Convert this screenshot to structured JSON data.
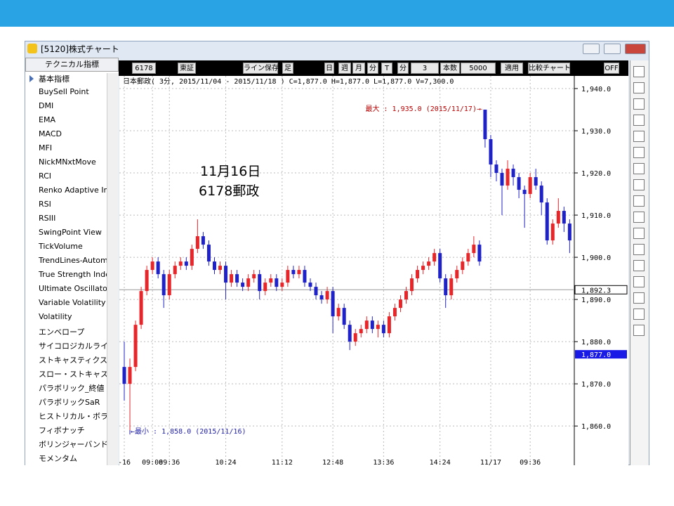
{
  "window": {
    "title": "[5120]株式チャート"
  },
  "sidebar": {
    "header": "テクニカル指標",
    "items": [
      "基本指標",
      "BuySell Point",
      "DMI",
      "EMA",
      "MACD",
      "MFI",
      "NickMNxtMove",
      "RCI",
      "Renko Adaptive Ind",
      "RSI",
      "RSIII",
      "SwingPoint View",
      "TickVolume",
      "TrendLines-Automa",
      "True Strength Inde",
      "Ultimate Oscillator",
      "Variable Volatility",
      "Volatility",
      "エンベロープ",
      "サイコロジカルライン",
      "ストキャスティクス(",
      "スロー・ストキャステ",
      "パラボリック_終値",
      "パラボリックSaR",
      "ヒストリカル・ボラテ",
      "フィボナッチ",
      "ボリンジャーバンド",
      "モメンタム"
    ]
  },
  "toolbar": {
    "items": [
      "6178",
      "東証",
      "ライン保存",
      "足",
      "日",
      "週",
      "月",
      "分",
      "T",
      "分",
      "3",
      "本数",
      "5000",
      "適用",
      "比較チャート",
      "OFF"
    ]
  },
  "chart_data": {
    "type": "candlestick",
    "header": "日本郵政( 3分, 2015/11/04 - 2015/11/18 )  C=1,877.0 H=1,877.0 L=1,877.0 V=7,300.0",
    "annotations": [
      "最大 : 1,935.0 (2015/11/17)→",
      "←最小 : 1,858.0 (2015/11/16)"
    ],
    "overlay_text": [
      "11月16日",
      "6178郵政"
    ],
    "up_color": "#e8262a",
    "down_color": "#1f22c8",
    "ylim": [
      1850.7,
      1943
    ],
    "yticks": [
      {
        "value": 1940,
        "label": "1,940.0"
      },
      {
        "value": 1930,
        "label": "1,930.0"
      },
      {
        "value": 1920,
        "label": "1,920.0"
      },
      {
        "value": 1910,
        "label": "1,910.0"
      },
      {
        "value": 1900,
        "label": "1,900.0"
      },
      {
        "value": 1890,
        "label": "1,890.0"
      },
      {
        "value": 1880,
        "label": "1,880.0"
      },
      {
        "value": 1870,
        "label": "1,870.0"
      },
      {
        "value": 1860,
        "label": "1,860.0"
      }
    ],
    "xticks": [
      {
        "value": 0,
        "label": "-16"
      },
      {
        "value": 5,
        "label": "09:08"
      },
      {
        "value": 8,
        "label": "09:36"
      },
      {
        "value": 18,
        "label": "10:24"
      },
      {
        "value": 28,
        "label": "11:12"
      },
      {
        "value": 37,
        "label": "12:48"
      },
      {
        "value": 46,
        "label": "13:36"
      },
      {
        "value": 56,
        "label": "14:24"
      },
      {
        "value": 65,
        "label": "11/17"
      },
      {
        "value": 72,
        "label": "09:36"
      }
    ],
    "price_lines": [
      {
        "value": 1892.3,
        "label": "1,892.3"
      },
      {
        "value": 1877,
        "label": "1,877.0"
      }
    ],
    "candles": [
      [
        1874,
        1880,
        1866,
        1870
      ],
      [
        1870,
        1876,
        1858,
        1874
      ],
      [
        1874,
        1885,
        1873,
        1884
      ],
      [
        1884,
        1893,
        1883,
        1892
      ],
      [
        1892,
        1898,
        1891,
        1897
      ],
      [
        1897,
        1900,
        1896,
        1899
      ],
      [
        1899,
        1900,
        1895,
        1896
      ],
      [
        1896,
        1897,
        1888,
        1891
      ],
      [
        1891,
        1897,
        1890,
        1896
      ],
      [
        1896,
        1899,
        1895,
        1898
      ],
      [
        1898,
        1900,
        1897,
        1899
      ],
      [
        1899,
        1900,
        1897,
        1898
      ],
      [
        1898,
        1903,
        1897,
        1902
      ],
      [
        1902,
        1909,
        1901,
        1905
      ],
      [
        1905,
        1906,
        1902,
        1903
      ],
      [
        1903,
        1904,
        1898,
        1899
      ],
      [
        1899,
        1900,
        1896,
        1897
      ],
      [
        1897,
        1899,
        1896,
        1898
      ],
      [
        1898,
        1899,
        1890,
        1894
      ],
      [
        1894,
        1897,
        1893,
        1896
      ],
      [
        1896,
        1897,
        1893,
        1894
      ],
      [
        1894,
        1895,
        1892,
        1893
      ],
      [
        1893,
        1896,
        1892,
        1895
      ],
      [
        1895,
        1897,
        1894,
        1896
      ],
      [
        1896,
        1897,
        1890,
        1892
      ],
      [
        1892,
        1895,
        1891,
        1894
      ],
      [
        1894,
        1896,
        1893,
        1895
      ],
      [
        1895,
        1896,
        1892,
        1893
      ],
      [
        1893,
        1895,
        1892,
        1894
      ],
      [
        1894,
        1898,
        1893,
        1897
      ],
      [
        1897,
        1898,
        1895,
        1896
      ],
      [
        1896,
        1898,
        1895,
        1897
      ],
      [
        1897,
        1898,
        1893,
        1894
      ],
      [
        1894,
        1895,
        1892,
        1893
      ],
      [
        1893,
        1894,
        1890,
        1891
      ],
      [
        1891,
        1892,
        1889,
        1890
      ],
      [
        1890,
        1893,
        1889,
        1892
      ],
      [
        1892,
        1893,
        1882,
        1886
      ],
      [
        1886,
        1889,
        1885,
        1888
      ],
      [
        1888,
        1889,
        1883,
        1884
      ],
      [
        1884,
        1885,
        1878,
        1880
      ],
      [
        1880,
        1883,
        1879,
        1882
      ],
      [
        1882,
        1884,
        1881,
        1883
      ],
      [
        1883,
        1886,
        1882,
        1885
      ],
      [
        1885,
        1886,
        1882,
        1883
      ],
      [
        1883,
        1885,
        1881,
        1884
      ],
      [
        1884,
        1885,
        1881,
        1882
      ],
      [
        1882,
        1887,
        1881,
        1886
      ],
      [
        1886,
        1889,
        1885,
        1888
      ],
      [
        1888,
        1891,
        1887,
        1890
      ],
      [
        1890,
        1893,
        1889,
        1892
      ],
      [
        1892,
        1896,
        1891,
        1895
      ],
      [
        1895,
        1898,
        1894,
        1897
      ],
      [
        1897,
        1899,
        1896,
        1898
      ],
      [
        1898,
        1900,
        1897,
        1899
      ],
      [
        1899,
        1902,
        1898,
        1901
      ],
      [
        1901,
        1902,
        1894,
        1895
      ],
      [
        1895,
        1896,
        1888,
        1891
      ],
      [
        1891,
        1896,
        1890,
        1895
      ],
      [
        1895,
        1898,
        1894,
        1897
      ],
      [
        1897,
        1900,
        1896,
        1899
      ],
      [
        1899,
        1902,
        1898,
        1901
      ],
      [
        1901,
        1905,
        1900,
        1903
      ],
      [
        1903,
        1904,
        1898,
        1899
      ],
      [
        1935,
        1935,
        1926,
        1928
      ],
      [
        1928,
        1929,
        1919,
        1922
      ],
      [
        1922,
        1923,
        1918,
        1920
      ],
      [
        1920,
        1921,
        1910,
        1917
      ],
      [
        1917,
        1923,
        1916,
        1921
      ],
      [
        1921,
        1922,
        1917,
        1919
      ],
      [
        1919,
        1920,
        1914,
        1916
      ],
      [
        1916,
        1917,
        1907,
        1915
      ],
      [
        1915,
        1920,
        1914,
        1919
      ],
      [
        1919,
        1921,
        1916,
        1917
      ],
      [
        1917,
        1918,
        1910,
        1913
      ],
      [
        1913,
        1914,
        1903,
        1904
      ],
      [
        1904,
        1909,
        1903,
        1908
      ],
      [
        1908,
        1914,
        1907,
        1911
      ],
      [
        1911,
        1912,
        1906,
        1908
      ],
      [
        1908,
        1909,
        1901,
        1904
      ]
    ]
  }
}
